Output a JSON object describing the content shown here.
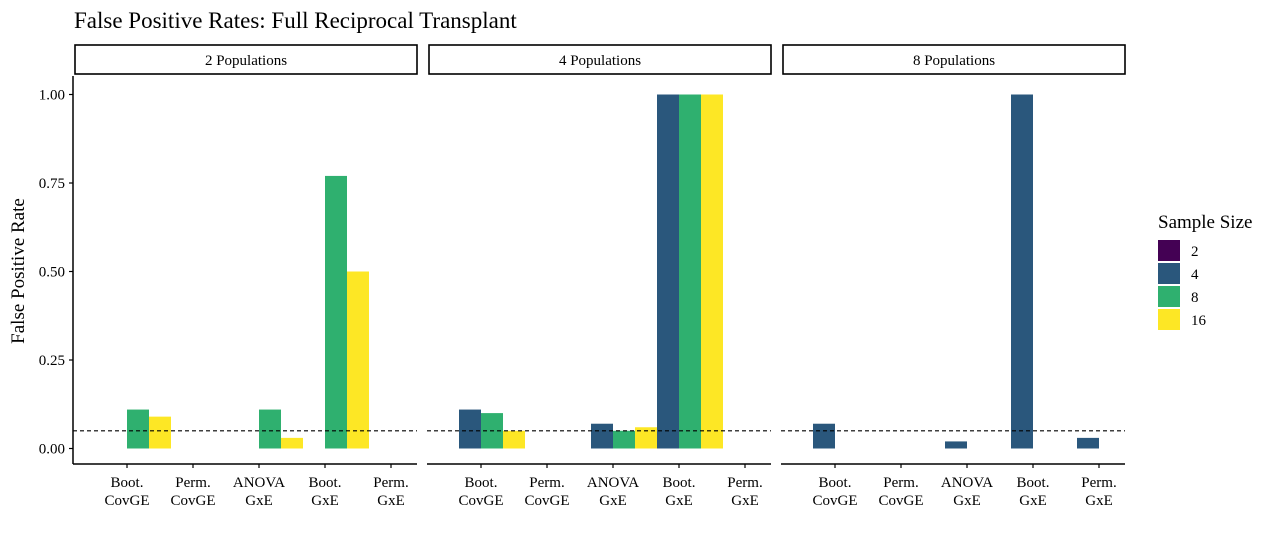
{
  "chart_data": {
    "type": "bar",
    "title": "False Positive Rates: Full Reciprocal Transplant",
    "ylabel": "False Positive Rate",
    "xlabel": "",
    "ylim": [
      0,
      1.0
    ],
    "y_ticks": [
      "0.00",
      "0.25",
      "0.50",
      "0.75",
      "1.00"
    ],
    "y_tick_values": [
      0,
      0.25,
      0.5,
      0.75,
      1.0
    ],
    "reference_line": 0.05,
    "grid": false,
    "legend_title": "Sample Size",
    "legend_position": "right",
    "categories": [
      "Boot. CovGE",
      "Perm. CovGE",
      "ANOVA GxE",
      "Boot. GxE",
      "Perm. GxE"
    ],
    "category_lines": [
      [
        "Boot.",
        "CovGE"
      ],
      [
        "Perm.",
        "CovGE"
      ],
      [
        "ANOVA",
        "GxE"
      ],
      [
        "Boot.",
        "GxE"
      ],
      [
        "Perm.",
        "GxE"
      ]
    ],
    "series": [
      {
        "name": "2",
        "color": "#440154"
      },
      {
        "name": "4",
        "color": "#2a577c"
      },
      {
        "name": "8",
        "color": "#2fb06f"
      },
      {
        "name": "16",
        "color": "#fde725"
      }
    ],
    "panels": [
      {
        "label": "2 Populations",
        "groups": [
          {
            "bars": [
              {
                "series": "8",
                "value": 0.11
              },
              {
                "series": "16",
                "value": 0.09
              }
            ]
          },
          {
            "bars": []
          },
          {
            "bars": [
              {
                "series": "8",
                "value": 0.11
              },
              {
                "series": "16",
                "value": 0.03
              }
            ]
          },
          {
            "bars": [
              {
                "series": "8",
                "value": 0.77
              },
              {
                "series": "16",
                "value": 0.5
              }
            ]
          },
          {
            "bars": []
          }
        ]
      },
      {
        "label": "4 Populations",
        "groups": [
          {
            "bars": [
              {
                "series": "4",
                "value": 0.11
              },
              {
                "series": "8",
                "value": 0.1
              },
              {
                "series": "16",
                "value": 0.05
              }
            ]
          },
          {
            "bars": []
          },
          {
            "bars": [
              {
                "series": "4",
                "value": 0.07
              },
              {
                "series": "8",
                "value": 0.05
              },
              {
                "series": "16",
                "value": 0.06
              }
            ]
          },
          {
            "bars": [
              {
                "series": "4",
                "value": 1.0
              },
              {
                "series": "8",
                "value": 1.0
              },
              {
                "series": "16",
                "value": 1.0
              }
            ]
          },
          {
            "bars": []
          }
        ]
      },
      {
        "label": "8 Populations",
        "groups": [
          {
            "bars": [
              {
                "series": "4",
                "value": 0.07
              }
            ]
          },
          {
            "bars": []
          },
          {
            "bars": [
              {
                "series": "4",
                "value": 0.02
              }
            ]
          },
          {
            "bars": [
              {
                "series": "4",
                "value": 1.0
              }
            ]
          },
          {
            "bars": [
              {
                "series": "4",
                "value": 0.03
              }
            ]
          }
        ]
      }
    ]
  }
}
